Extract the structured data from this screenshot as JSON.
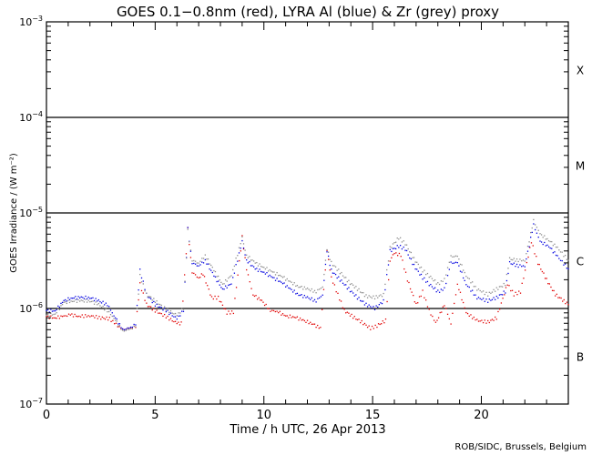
{
  "chart_data": {
    "type": "scatter",
    "title": "GOES 0.1−0.8nm (red), LYRA Al (blue) & Zr (grey) proxy",
    "xlabel": "Time / h UTC, 26 Apr 2013",
    "ylabel": "GOES Irradiance / (W m⁻²)",
    "xlim": [
      0,
      24
    ],
    "ylim": [
      1e-07,
      0.001
    ],
    "yscale": "log",
    "x_ticks": [
      "0",
      "5",
      "10",
      "15",
      "20"
    ],
    "x_tick_values": [
      0,
      5,
      10,
      15,
      20
    ],
    "y_ticks": [
      {
        "base": "10",
        "exp": "−3",
        "value": 0.001
      },
      {
        "base": "10",
        "exp": "−4",
        "value": 0.0001
      },
      {
        "base": "10",
        "exp": "−5",
        "value": 1e-05
      },
      {
        "base": "10",
        "exp": "−6",
        "value": 1e-06
      },
      {
        "base": "10",
        "exp": "−7",
        "value": 1e-07
      }
    ],
    "flare_classes": [
      {
        "label": "X",
        "value": 0.000316
      },
      {
        "label": "M",
        "value": 3.16e-05
      },
      {
        "label": "C",
        "value": 3.16e-06
      },
      {
        "label": "B",
        "value": 3.16e-07
      }
    ],
    "class_lines": [
      0.0001,
      1e-05,
      1e-06
    ],
    "series": [
      {
        "name": "GOES 0.1-0.8nm",
        "color": "#e00000",
        "points": [
          [
            0.0,
            8.2e-07
          ],
          [
            0.4,
            8e-07
          ],
          [
            0.8,
            8.3e-07
          ],
          [
            1.1,
            8.6e-07
          ],
          [
            1.5,
            8.3e-07
          ],
          [
            2.0,
            8.4e-07
          ],
          [
            2.5,
            8e-07
          ],
          [
            2.9,
            7.8e-07
          ],
          [
            3.2,
            6.8e-07
          ],
          [
            3.5,
            6e-07
          ],
          [
            3.8,
            6.2e-07
          ],
          [
            4.1,
            6.4e-07
          ],
          [
            4.3,
            1.8e-06
          ],
          [
            4.6,
            1.1e-06
          ],
          [
            5.0,
            9.5e-07
          ],
          [
            5.5,
            8.2e-07
          ],
          [
            6.0,
            7e-07
          ],
          [
            6.2,
            7e-07
          ],
          [
            6.5,
            6.8e-06
          ],
          [
            6.7,
            2.4e-06
          ],
          [
            7.0,
            2.1e-06
          ],
          [
            7.2,
            2.3e-06
          ],
          [
            7.6,
            1.3e-06
          ],
          [
            7.9,
            1.3e-06
          ],
          [
            8.3,
            9e-07
          ],
          [
            8.6,
            9.2e-07
          ],
          [
            9.0,
            5.6e-06
          ],
          [
            9.2,
            2.6e-06
          ],
          [
            9.5,
            1.4e-06
          ],
          [
            9.9,
            1.2e-06
          ],
          [
            10.3,
            9.5e-07
          ],
          [
            10.6,
            9.4e-07
          ],
          [
            11.0,
            8.3e-07
          ],
          [
            11.4,
            8.2e-07
          ],
          [
            11.8,
            7.5e-07
          ],
          [
            12.2,
            7e-07
          ],
          [
            12.6,
            6.2e-07
          ],
          [
            12.9,
            4e-06
          ],
          [
            13.1,
            2.1e-06
          ],
          [
            13.4,
            1.4e-06
          ],
          [
            13.7,
            9.5e-07
          ],
          [
            14.1,
            8.2e-07
          ],
          [
            14.5,
            7.2e-07
          ],
          [
            14.9,
            6.2e-07
          ],
          [
            15.2,
            6.6e-07
          ],
          [
            15.6,
            7.5e-07
          ],
          [
            15.8,
            3.2e-06
          ],
          [
            16.0,
            3.8e-06
          ],
          [
            16.3,
            3.6e-06
          ],
          [
            16.6,
            2e-06
          ],
          [
            17.0,
            1.1e-06
          ],
          [
            17.3,
            1.5e-06
          ],
          [
            17.6,
            9.5e-07
          ],
          [
            17.9,
            7e-07
          ],
          [
            18.3,
            1.1e-06
          ],
          [
            18.6,
            7e-07
          ],
          [
            18.9,
            1.8e-06
          ],
          [
            19.3,
            9e-07
          ],
          [
            19.8,
            7.5e-07
          ],
          [
            20.3,
            7.2e-07
          ],
          [
            20.7,
            8e-07
          ],
          [
            21.2,
            1.8e-06
          ],
          [
            21.5,
            1.4e-06
          ],
          [
            21.8,
            1.5e-06
          ],
          [
            22.3,
            5e-06
          ],
          [
            22.6,
            3e-06
          ],
          [
            23.0,
            2e-06
          ],
          [
            23.4,
            1.4e-06
          ],
          [
            23.8,
            1.2e-06
          ],
          [
            24.0,
            1.1e-06
          ]
        ]
      },
      {
        "name": "LYRA Al",
        "color": "#0000e0",
        "points": [
          [
            0.0,
            9.5e-07
          ],
          [
            0.4,
            9.5e-07
          ],
          [
            0.8,
            1.2e-06
          ],
          [
            1.2,
            1.3e-06
          ],
          [
            1.6,
            1.3e-06
          ],
          [
            2.0,
            1.3e-06
          ],
          [
            2.4,
            1.2e-06
          ],
          [
            2.8,
            1.1e-06
          ],
          [
            3.1,
            8.5e-07
          ],
          [
            3.5,
            6e-07
          ],
          [
            3.8,
            6.2e-07
          ],
          [
            4.1,
            6.8e-07
          ],
          [
            4.3,
            2.5e-06
          ],
          [
            4.6,
            1.4e-06
          ],
          [
            5.0,
            1.1e-06
          ],
          [
            5.5,
            9.5e-07
          ],
          [
            6.0,
            7.8e-07
          ],
          [
            6.3,
            9.5e-07
          ],
          [
            6.5,
            6.8e-06
          ],
          [
            6.7,
            3e-06
          ],
          [
            7.0,
            2.8e-06
          ],
          [
            7.3,
            3.2e-06
          ],
          [
            7.7,
            2.2e-06
          ],
          [
            8.1,
            1.6e-06
          ],
          [
            8.5,
            1.8e-06
          ],
          [
            9.0,
            5e-06
          ],
          [
            9.2,
            3.2e-06
          ],
          [
            9.6,
            2.6e-06
          ],
          [
            10.0,
            2.4e-06
          ],
          [
            10.4,
            2.1e-06
          ],
          [
            10.8,
            1.9e-06
          ],
          [
            11.2,
            1.6e-06
          ],
          [
            11.6,
            1.4e-06
          ],
          [
            12.0,
            1.3e-06
          ],
          [
            12.4,
            1.2e-06
          ],
          [
            12.7,
            1.4e-06
          ],
          [
            12.9,
            4e-06
          ],
          [
            13.1,
            2.5e-06
          ],
          [
            13.5,
            2e-06
          ],
          [
            13.9,
            1.6e-06
          ],
          [
            14.3,
            1.3e-06
          ],
          [
            14.7,
            1.1e-06
          ],
          [
            15.1,
            1e-06
          ],
          [
            15.5,
            1.2e-06
          ],
          [
            15.8,
            4e-06
          ],
          [
            16.2,
            4.5e-06
          ],
          [
            16.5,
            4.2e-06
          ],
          [
            16.9,
            2.8e-06
          ],
          [
            17.3,
            2.1e-06
          ],
          [
            17.6,
            1.8e-06
          ],
          [
            18.0,
            1.5e-06
          ],
          [
            18.3,
            1.6e-06
          ],
          [
            18.6,
            3e-06
          ],
          [
            18.9,
            3e-06
          ],
          [
            19.3,
            1.8e-06
          ],
          [
            19.8,
            1.3e-06
          ],
          [
            20.3,
            1.2e-06
          ],
          [
            20.7,
            1.3e-06
          ],
          [
            21.1,
            1.5e-06
          ],
          [
            21.3,
            3e-06
          ],
          [
            21.7,
            2.8e-06
          ],
          [
            22.0,
            2.8e-06
          ],
          [
            22.4,
            7.5e-06
          ],
          [
            22.7,
            5e-06
          ],
          [
            23.1,
            4.5e-06
          ],
          [
            23.5,
            3.5e-06
          ],
          [
            24.0,
            2.6e-06
          ]
        ]
      },
      {
        "name": "LYRA Zr",
        "color": "#8c8c8c",
        "points": [
          [
            0.0,
            8.5e-07
          ],
          [
            0.4,
            8.8e-07
          ],
          [
            0.8,
            1.15e-06
          ],
          [
            1.2,
            1.2e-06
          ],
          [
            1.6,
            1.2e-06
          ],
          [
            2.0,
            1.2e-06
          ],
          [
            2.4,
            1.1e-06
          ],
          [
            2.8,
            9.5e-07
          ],
          [
            3.1,
            8e-07
          ],
          [
            3.5,
            5.8e-07
          ],
          [
            3.8,
            6e-07
          ],
          [
            4.1,
            6.5e-07
          ],
          [
            4.3,
            2.2e-06
          ],
          [
            4.6,
            1.4e-06
          ],
          [
            5.0,
            1.2e-06
          ],
          [
            5.5,
            9.8e-07
          ],
          [
            6.0,
            8.5e-07
          ],
          [
            6.3,
            1e-06
          ],
          [
            6.5,
            6.5e-06
          ],
          [
            6.7,
            3.2e-06
          ],
          [
            7.0,
            3e-06
          ],
          [
            7.3,
            3.6e-06
          ],
          [
            7.7,
            2.5e-06
          ],
          [
            8.1,
            1.8e-06
          ],
          [
            8.5,
            2.2e-06
          ],
          [
            9.0,
            5.5e-06
          ],
          [
            9.2,
            3.6e-06
          ],
          [
            9.6,
            3e-06
          ],
          [
            10.0,
            2.7e-06
          ],
          [
            10.4,
            2.4e-06
          ],
          [
            10.8,
            2.2e-06
          ],
          [
            11.2,
            1.9e-06
          ],
          [
            11.6,
            1.7e-06
          ],
          [
            12.0,
            1.6e-06
          ],
          [
            12.4,
            1.5e-06
          ],
          [
            12.7,
            1.7e-06
          ],
          [
            12.9,
            4.2e-06
          ],
          [
            13.1,
            3e-06
          ],
          [
            13.5,
            2.4e-06
          ],
          [
            13.9,
            1.9e-06
          ],
          [
            14.3,
            1.6e-06
          ],
          [
            14.7,
            1.35e-06
          ],
          [
            15.1,
            1.3e-06
          ],
          [
            15.5,
            1.4e-06
          ],
          [
            15.8,
            4.3e-06
          ],
          [
            16.2,
            5.5e-06
          ],
          [
            16.5,
            4.8e-06
          ],
          [
            16.9,
            3.3e-06
          ],
          [
            17.3,
            2.5e-06
          ],
          [
            17.6,
            2.2e-06
          ],
          [
            18.0,
            1.8e-06
          ],
          [
            18.3,
            2e-06
          ],
          [
            18.6,
            3.5e-06
          ],
          [
            18.9,
            3.5e-06
          ],
          [
            19.3,
            2.2e-06
          ],
          [
            19.8,
            1.6e-06
          ],
          [
            20.3,
            1.4e-06
          ],
          [
            20.7,
            1.6e-06
          ],
          [
            21.1,
            1.8e-06
          ],
          [
            21.3,
            3.3e-06
          ],
          [
            21.7,
            3.2e-06
          ],
          [
            22.0,
            3.2e-06
          ],
          [
            22.4,
            8.3e-06
          ],
          [
            22.7,
            6e-06
          ],
          [
            23.1,
            5.2e-06
          ],
          [
            23.5,
            4.3e-06
          ],
          [
            24.0,
            3.2e-06
          ]
        ]
      }
    ],
    "credit": "ROB/SIDC, Brussels, Belgium"
  }
}
